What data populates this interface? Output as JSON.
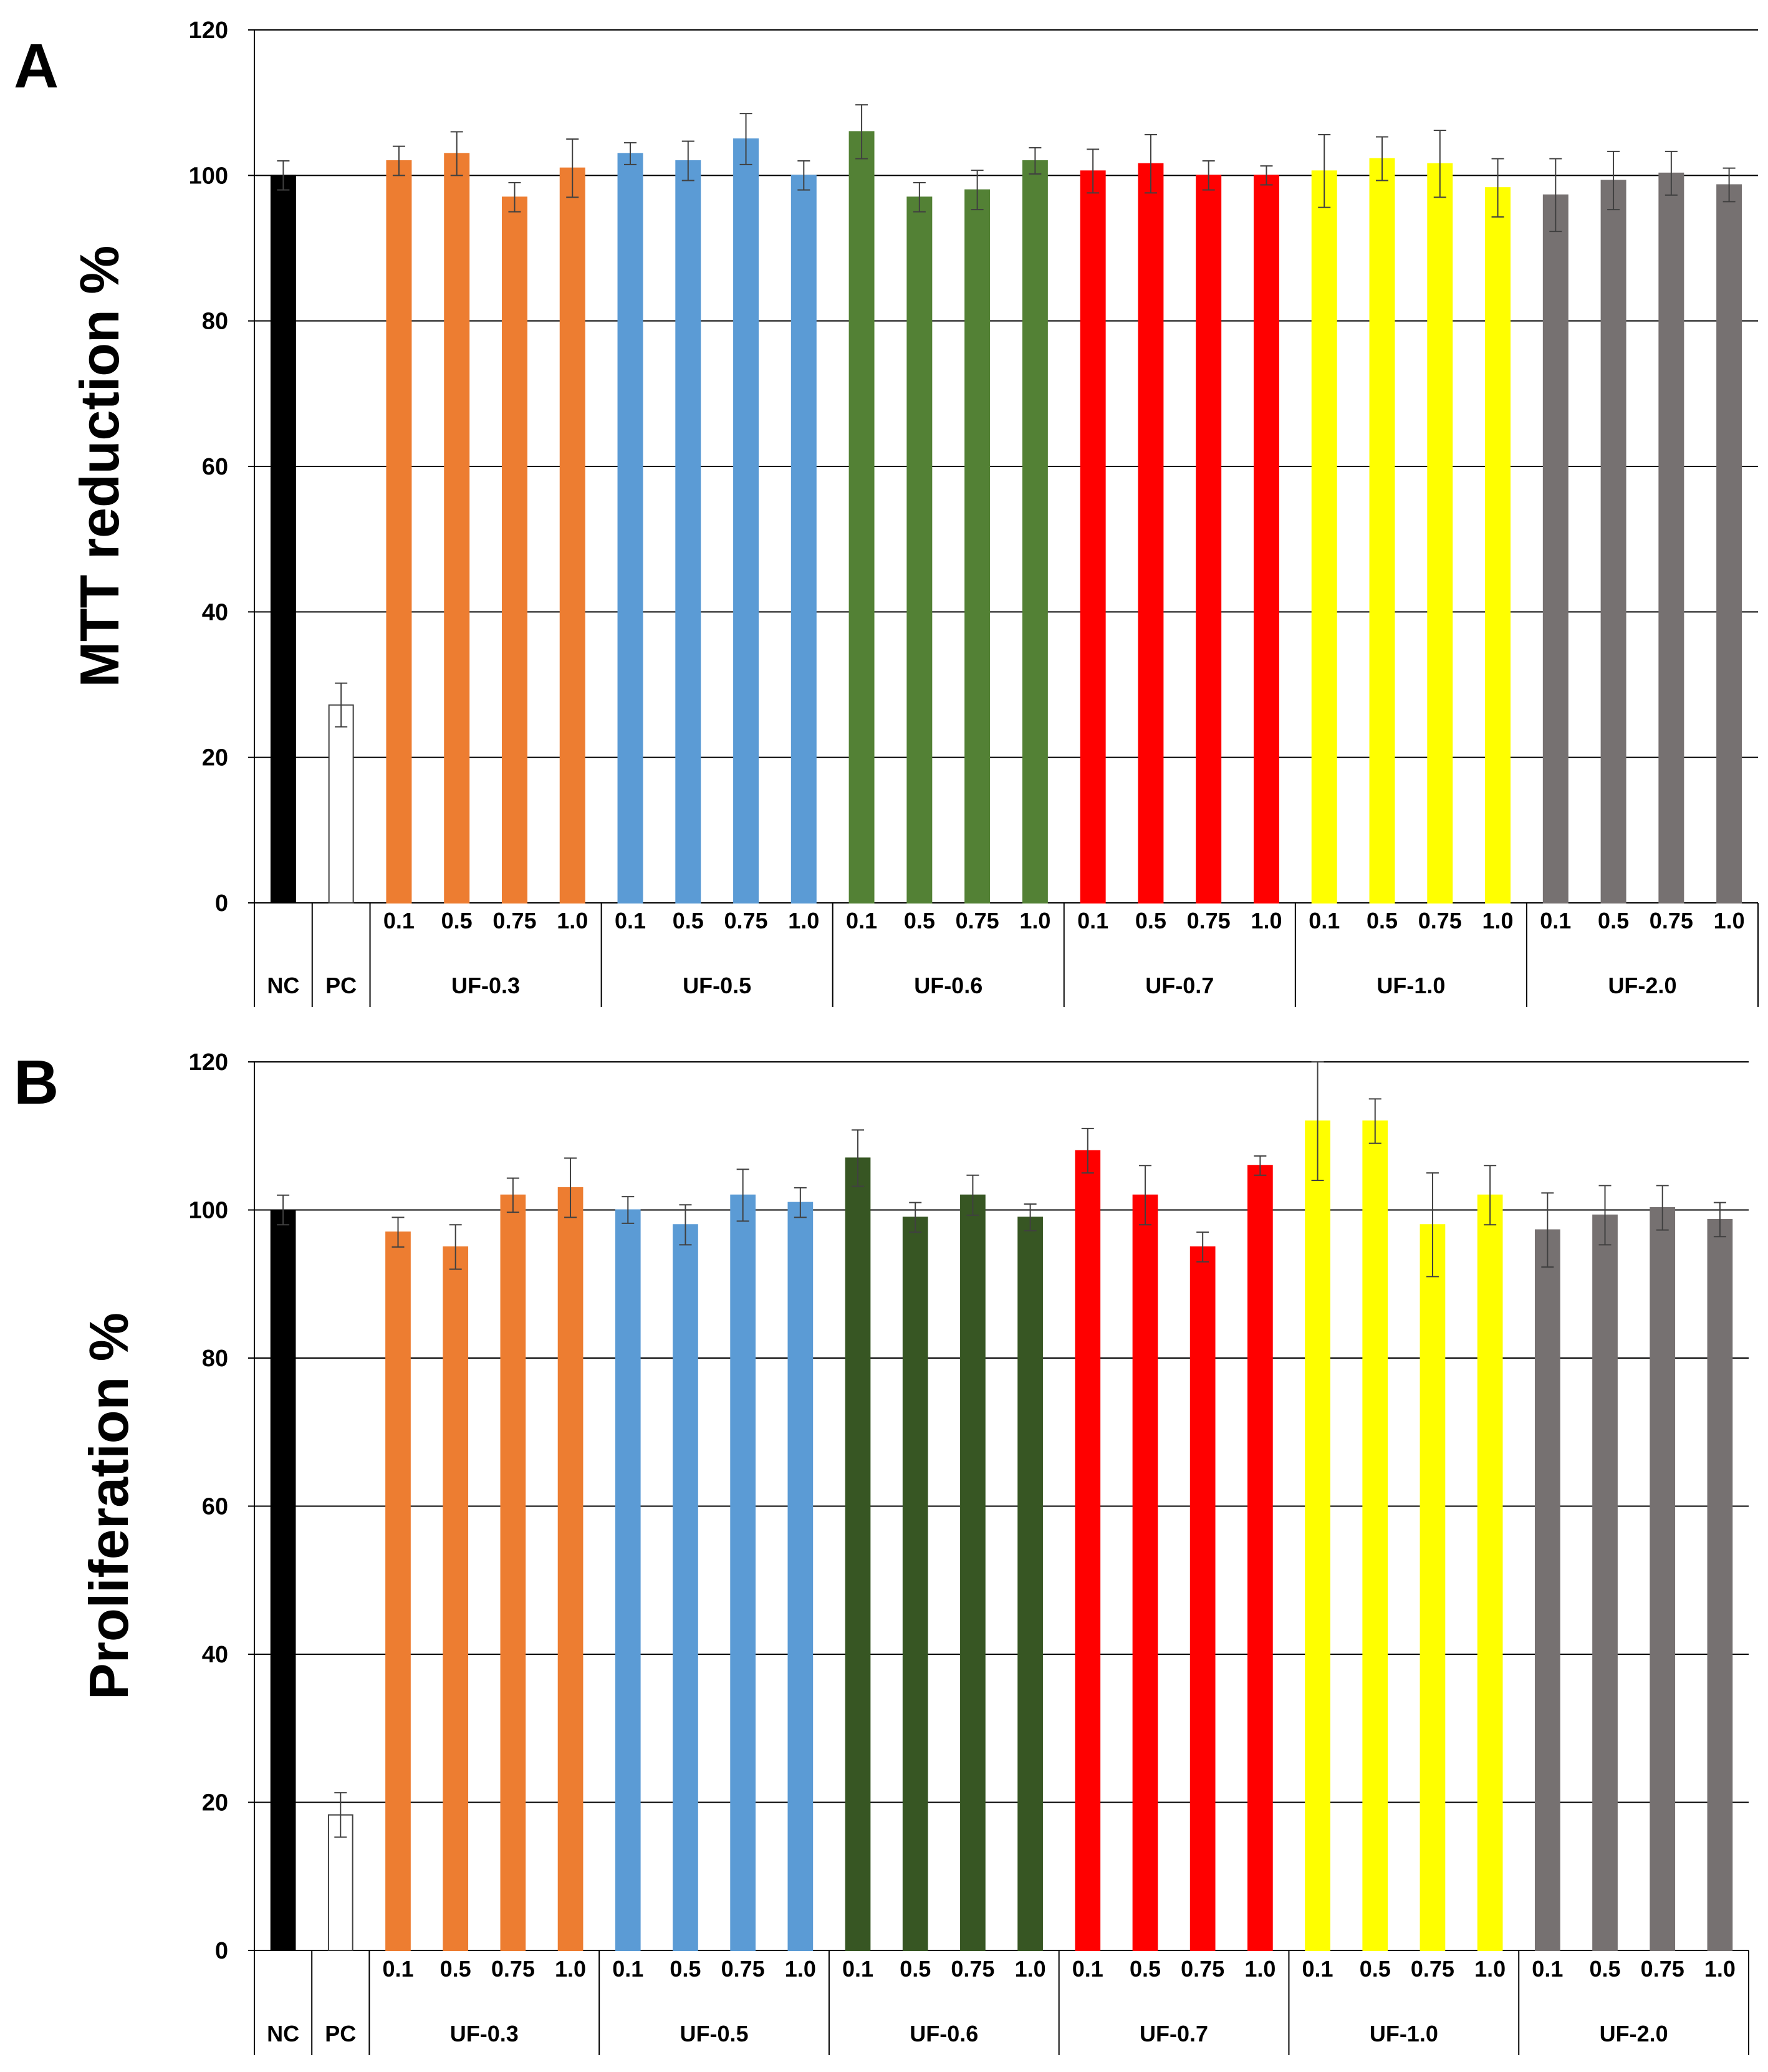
{
  "chart_data": [
    {
      "panel": "A",
      "type": "bar",
      "ylabel": "MTT reduction %",
      "ylim": [
        0,
        120
      ],
      "yticks": [
        "0",
        "20",
        "40",
        "60",
        "80",
        "100",
        "120"
      ],
      "grid": true,
      "controls": [
        {
          "label": "NC",
          "value": 100,
          "err": 2,
          "color": "#000000",
          "outline": "#000000"
        },
        {
          "label": "PC",
          "value": 27.2,
          "err": 3,
          "color": "#ffffff",
          "outline": "#404040"
        }
      ],
      "groups": [
        {
          "name": "UF-0.3",
          "color": "#ed7d31",
          "concentrations": [
            "0.1",
            "0.5",
            "0.75",
            "1.0"
          ],
          "values": [
            102,
            103,
            97,
            101
          ],
          "errors": [
            2,
            3,
            2,
            4
          ]
        },
        {
          "name": "UF-0.5",
          "color": "#5b9bd5",
          "concentrations": [
            "0.1",
            "0.5",
            "0.75",
            "1.0"
          ],
          "values": [
            103,
            102,
            105,
            100
          ],
          "errors": [
            1.5,
            2.7,
            3.5,
            2
          ]
        },
        {
          "name": "UF-0.6",
          "color": "#538135",
          "concentrations": [
            "0.1",
            "0.5",
            "0.75",
            "1.0"
          ],
          "values": [
            106,
            97,
            98,
            102
          ],
          "errors": [
            3.7,
            2,
            2.7,
            1.8
          ]
        },
        {
          "name": "UF-0.7",
          "color": "#ff0000",
          "concentrations": [
            "0.1",
            "0.5",
            "0.75",
            "1.0"
          ],
          "values": [
            100.6,
            101.6,
            100,
            100
          ],
          "errors": [
            3,
            4,
            2,
            1.3
          ]
        },
        {
          "name": "UF-1.0",
          "color": "#ffff00",
          "concentrations": [
            "0.1",
            "0.5",
            "0.75",
            "1.0"
          ],
          "values": [
            100.6,
            102.3,
            101.6,
            98.3
          ],
          "errors": [
            5,
            3,
            4.6,
            4
          ]
        },
        {
          "name": "UF-2.0",
          "color": "#767171",
          "concentrations": [
            "0.1",
            "0.5",
            "0.75",
            "1.0"
          ],
          "values": [
            97.3,
            99.3,
            100.3,
            98.7
          ],
          "errors": [
            5,
            4,
            3,
            2.3
          ]
        }
      ]
    },
    {
      "panel": "B",
      "type": "bar",
      "ylabel": "Proliferation %",
      "ylim": [
        0,
        120
      ],
      "yticks": [
        "0",
        "20",
        "40",
        "60",
        "80",
        "100",
        "120"
      ],
      "grid": true,
      "controls": [
        {
          "label": "NC",
          "value": 100,
          "err": 2,
          "color": "#000000",
          "outline": "#000000"
        },
        {
          "label": "PC",
          "value": 18.3,
          "err": 3,
          "color": "#ffffff",
          "outline": "#404040"
        }
      ],
      "groups": [
        {
          "name": "UF-0.3",
          "color": "#ed7d31",
          "concentrations": [
            "0.1",
            "0.5",
            "0.75",
            "1.0"
          ],
          "values": [
            97,
            95,
            102,
            103
          ],
          "errors": [
            2,
            3,
            2.3,
            4
          ]
        },
        {
          "name": "UF-0.5",
          "color": "#5b9bd5",
          "concentrations": [
            "0.1",
            "0.5",
            "0.75",
            "1.0"
          ],
          "values": [
            100,
            98,
            102,
            101
          ],
          "errors": [
            1.8,
            2.7,
            3.5,
            2
          ]
        },
        {
          "name": "UF-0.6",
          "color": "#375623",
          "concentrations": [
            "0.1",
            "0.5",
            "0.75",
            "1.0"
          ],
          "values": [
            107,
            99,
            102,
            99
          ],
          "errors": [
            3.8,
            2,
            2.7,
            1.8
          ]
        },
        {
          "name": "UF-0.7",
          "color": "#ff0000",
          "concentrations": [
            "0.1",
            "0.5",
            "0.75",
            "1.0"
          ],
          "values": [
            108,
            102,
            95,
            106
          ],
          "errors": [
            3,
            4,
            2,
            1.3
          ]
        },
        {
          "name": "UF-1.0",
          "color": "#ffff00",
          "concentrations": [
            "0.1",
            "0.5",
            "0.75",
            "1.0"
          ],
          "values": [
            112,
            112,
            98,
            102
          ],
          "errors": [
            8,
            3,
            7,
            4
          ]
        },
        {
          "name": "UF-2.0",
          "color": "#767171",
          "concentrations": [
            "0.1",
            "0.5",
            "0.75",
            "1.0"
          ],
          "values": [
            97.3,
            99.3,
            100.3,
            98.7
          ],
          "errors": [
            5,
            4,
            3,
            2.3
          ]
        }
      ]
    }
  ]
}
